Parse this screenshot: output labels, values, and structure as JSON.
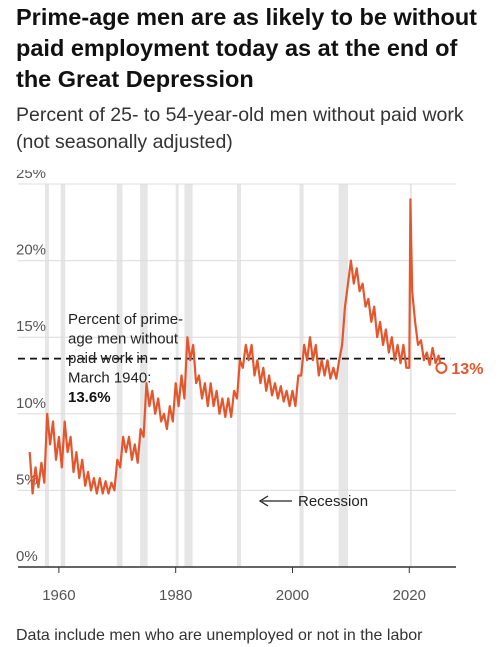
{
  "title": "Prime-age men are as likely to be without paid employment today as at the end of the Great Depression",
  "subtitle": "Percent of 25- to 54-year-old men without paid work (not seasonally adjusted)",
  "note": "Data include men who are unemployed or not in the labor",
  "colors": {
    "line": "#e4572e",
    "recession": "#e6e6e6",
    "grid": "#dcdcdc",
    "axis": "#333333"
  },
  "annotations": {
    "reference": {
      "lines": [
        "Percent of prime-",
        "age men without",
        "paid work in",
        "March 1940:"
      ],
      "value_label": "13.6%",
      "value": 13.6
    },
    "recession_label": "Recession",
    "end_label": "13%"
  },
  "chart_data": {
    "type": "line",
    "title": "Prime-age men are as likely to be without paid employment today as at the end of the Great Depression",
    "ylabel": "",
    "xlabel": "",
    "xlim": [
      1953,
      2028
    ],
    "ylim": [
      0,
      25
    ],
    "x_ticks": [
      1960,
      1980,
      2000,
      2020
    ],
    "y_ticks": [
      0,
      5,
      10,
      15,
      20,
      25
    ],
    "y_tick_labels": [
      "0%",
      "5%",
      "10%",
      "15%",
      "20%",
      "25%"
    ],
    "x_tick_labels": [
      "1960",
      "1980",
      "2000",
      "2020"
    ],
    "grid": "horizontal",
    "recessions": [
      [
        1957.6,
        1958.3
      ],
      [
        1960.3,
        1961.1
      ],
      [
        1969.9,
        1970.9
      ],
      [
        1973.9,
        1975.2
      ],
      [
        1980.0,
        1980.5
      ],
      [
        1981.5,
        1982.9
      ],
      [
        1990.5,
        1991.2
      ],
      [
        2001.2,
        2001.9
      ],
      [
        2007.9,
        2009.5
      ],
      [
        2020.1,
        2020.4
      ]
    ],
    "reference_line": 13.6,
    "end_point": {
      "x": 2025.5,
      "y": 13
    },
    "series": [
      {
        "name": "",
        "x": [
          1955,
          1955.5,
          1956,
          1956.5,
          1957,
          1957.5,
          1958,
          1958.5,
          1959,
          1959.5,
          1960,
          1960.5,
          1961,
          1961.5,
          1962,
          1962.5,
          1963,
          1963.5,
          1964,
          1964.5,
          1965,
          1965.5,
          1966,
          1966.5,
          1967,
          1967.5,
          1968,
          1968.5,
          1969,
          1969.5,
          1970,
          1970.5,
          1971,
          1971.5,
          1972,
          1972.5,
          1973,
          1973.5,
          1974,
          1974.5,
          1975,
          1975.5,
          1976,
          1976.5,
          1977,
          1977.5,
          1978,
          1978.5,
          1979,
          1979.5,
          1980,
          1980.5,
          1981,
          1981.5,
          1982,
          1982.5,
          1983,
          1983.5,
          1984,
          1984.5,
          1985,
          1985.5,
          1986,
          1986.5,
          1987,
          1987.5,
          1988,
          1988.5,
          1989,
          1989.5,
          1990,
          1990.5,
          1991,
          1991.5,
          1992,
          1992.5,
          1993,
          1993.5,
          1994,
          1994.5,
          1995,
          1995.5,
          1996,
          1996.5,
          1997,
          1997.5,
          1998,
          1998.5,
          1999,
          1999.5,
          2000,
          2000.5,
          2001,
          2001.5,
          2002,
          2002.5,
          2003,
          2003.5,
          2004,
          2004.5,
          2005,
          2005.5,
          2006,
          2006.5,
          2007,
          2007.5,
          2008,
          2008.5,
          2009,
          2009.5,
          2010,
          2010.5,
          2011,
          2011.5,
          2012,
          2012.5,
          2013,
          2013.5,
          2014,
          2014.5,
          2015,
          2015.5,
          2016,
          2016.5,
          2017,
          2017.5,
          2018,
          2018.5,
          2019,
          2019.5,
          2020,
          2020.2,
          2020.5,
          2021,
          2021.5,
          2022,
          2022.5,
          2023,
          2023.5,
          2024,
          2024.5,
          2025,
          2025.5
        ],
        "y": [
          7.5,
          4.8,
          6.5,
          5.2,
          6.8,
          5.5,
          10.0,
          8.0,
          9.5,
          7.0,
          8.5,
          6.5,
          9.5,
          7.5,
          8.5,
          6.2,
          7.5,
          5.8,
          7.0,
          5.3,
          6.2,
          5.0,
          5.8,
          4.8,
          5.8,
          4.8,
          5.6,
          4.8,
          5.5,
          5.0,
          7.0,
          6.5,
          8.5,
          7.5,
          8.5,
          7.0,
          8.0,
          6.8,
          9.0,
          8.5,
          12.0,
          10.5,
          11.5,
          10.0,
          11.0,
          9.5,
          10.0,
          9.0,
          10.5,
          9.5,
          12.0,
          10.5,
          12.5,
          11.0,
          15.0,
          13.5,
          14.5,
          12.0,
          12.5,
          11.0,
          12.0,
          10.5,
          12.0,
          10.5,
          11.5,
          10.0,
          11.0,
          9.8,
          11.0,
          9.8,
          11.5,
          11.0,
          13.5,
          13.0,
          14.5,
          13.5,
          14.5,
          12.5,
          13.5,
          12.0,
          13.0,
          11.5,
          12.5,
          11.2,
          12.0,
          11.0,
          11.8,
          10.8,
          11.5,
          10.5,
          11.5,
          10.5,
          12.5,
          12.5,
          14.5,
          13.5,
          15.0,
          13.5,
          14.5,
          12.5,
          13.5,
          12.5,
          13.5,
          12.3,
          13.0,
          12.3,
          13.5,
          14.5,
          17.0,
          18.5,
          20.0,
          18.5,
          19.5,
          18.0,
          18.5,
          17.0,
          17.5,
          16.0,
          17.0,
          15.0,
          16.0,
          14.5,
          15.5,
          14.0,
          15.0,
          13.5,
          14.5,
          13.3,
          14.5,
          13.0,
          13.0,
          24.0,
          18.0,
          16.0,
          14.5,
          14.8,
          13.5,
          14.0,
          13.2,
          14.3,
          13.3,
          13.8,
          13.0
        ]
      }
    ]
  }
}
